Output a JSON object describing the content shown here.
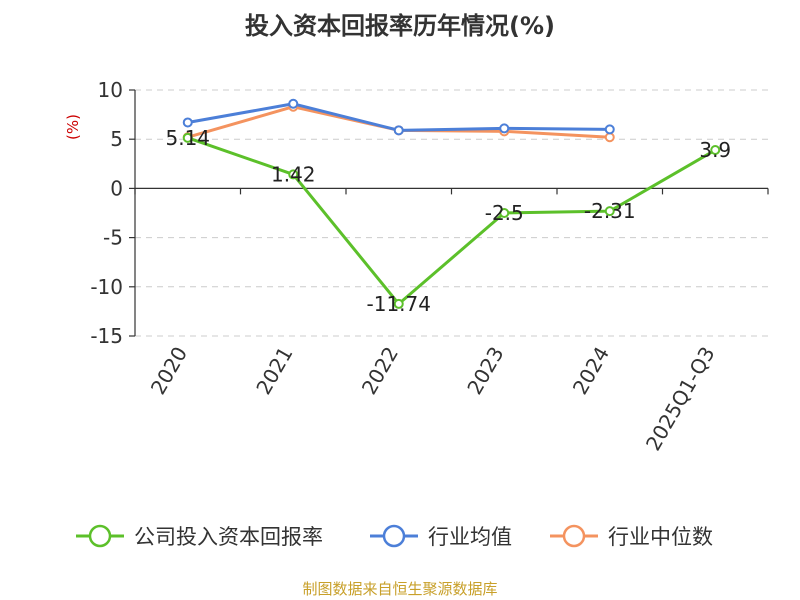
{
  "chart_data": {
    "type": "line",
    "title": "投入资本回报率历年情况(%)",
    "ylabel": "(%)",
    "categories": [
      "2020",
      "2021",
      "2022",
      "2023",
      "2024",
      "2025Q1-Q3"
    ],
    "ylim": [
      -15,
      10
    ],
    "yticks": [
      10,
      5,
      0,
      -5,
      -10,
      -15
    ],
    "grid": true,
    "legend_position": "bottom",
    "series": [
      {
        "name": "公司投入资本回报率",
        "color": "#5cc02a",
        "values": [
          5.14,
          1.42,
          -11.74,
          -2.5,
          -2.31,
          3.9
        ],
        "labels": [
          "5.14",
          "1.42",
          "-11.74",
          "-2.5",
          "-2.31",
          "3.9"
        ]
      },
      {
        "name": "行业均值",
        "color": "#4c7fd8",
        "values": [
          6.7,
          8.6,
          5.9,
          6.1,
          6.0,
          null
        ]
      },
      {
        "name": "行业中位数",
        "color": "#f4935f",
        "values": [
          5.2,
          8.3,
          5.9,
          5.8,
          5.2,
          null
        ]
      }
    ]
  },
  "source": "制图数据来自恒生聚源数据库",
  "colors": {
    "unit_label": "#cc0000",
    "source_text": "#c8a02a",
    "grid": "#cccccc",
    "axis": "#333333"
  }
}
